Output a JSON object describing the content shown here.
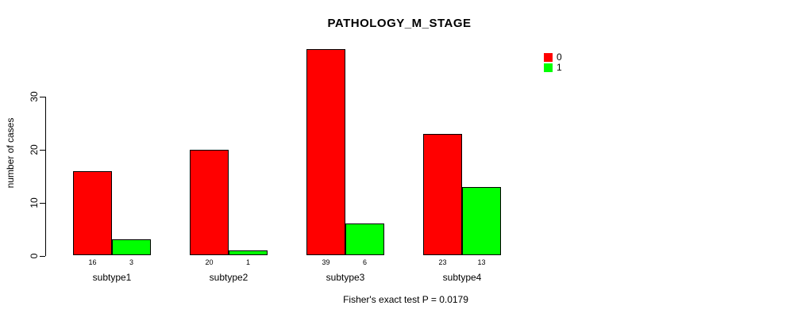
{
  "chart_data": {
    "type": "bar",
    "title": "PATHOLOGY_M_STAGE",
    "ylabel": "number of cases",
    "xlabel": "",
    "categories": [
      "subtype1",
      "subtype2",
      "subtype3",
      "subtype4"
    ],
    "series": [
      {
        "name": "0",
        "color": "#ff0000",
        "values": [
          16,
          20,
          39,
          23
        ]
      },
      {
        "name": "1",
        "color": "#00ff00",
        "values": [
          3,
          1,
          6,
          13
        ]
      }
    ],
    "yticks": [
      0,
      10,
      20,
      30
    ],
    "ylim": [
      0,
      39
    ],
    "grid": false,
    "legend_position": "top-right",
    "bar_value_labels_shown": true,
    "annotation": "Fisher's exact test P = 0.0179"
  }
}
